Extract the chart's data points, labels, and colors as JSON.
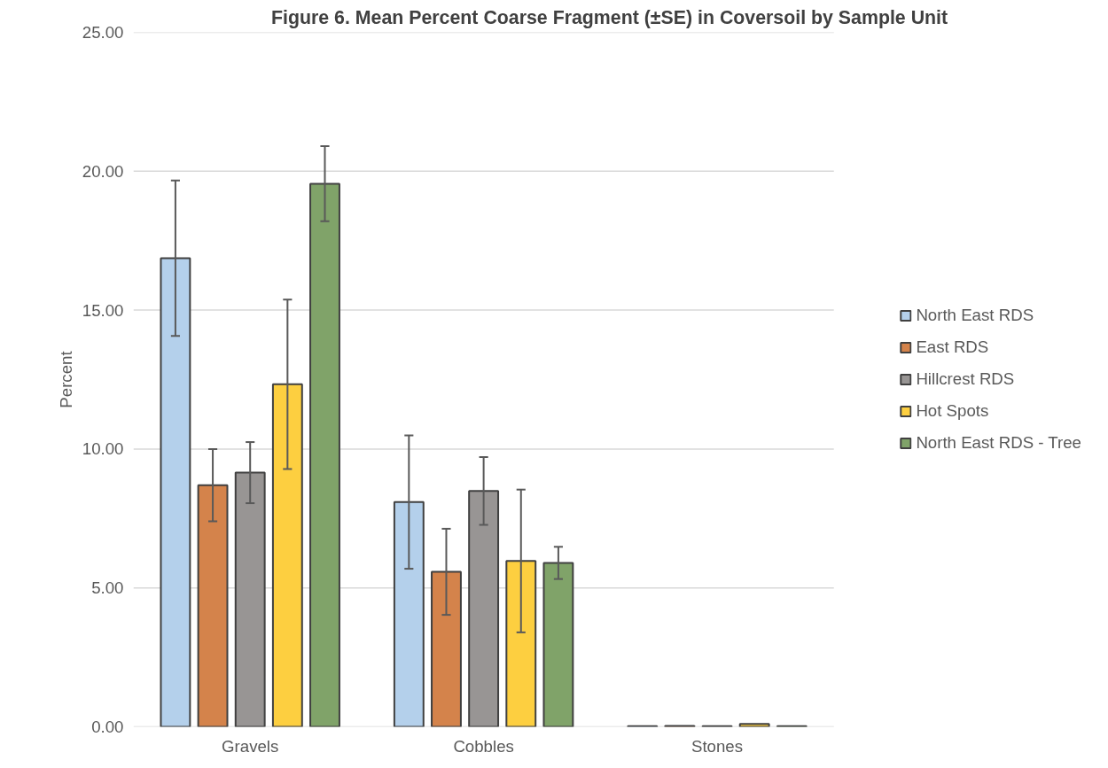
{
  "chart_data": {
    "type": "bar",
    "title": "Figure 6.  Mean Percent Coarse Fragment (±SE) in Coversoil by Sample Unit",
    "ylabel": "Percent",
    "categories": [
      "Gravels",
      "Cobbles",
      "Stones"
    ],
    "series": [
      {
        "name": "North East RDS",
        "color": "#b4d0eb",
        "values": [
          16.87,
          8.09,
          0.02
        ],
        "errors": [
          2.8,
          2.4,
          null
        ]
      },
      {
        "name": "East RDS",
        "color": "#d4834b",
        "values": [
          8.7,
          5.58,
          0.03
        ],
        "errors": [
          1.3,
          1.55,
          null
        ]
      },
      {
        "name": "Hillcrest RDS",
        "color": "#989594",
        "values": [
          9.15,
          8.49,
          0.02
        ],
        "errors": [
          1.1,
          1.22,
          null
        ]
      },
      {
        "name": "Hot Spots",
        "color": "#fdcf40",
        "values": [
          12.33,
          5.97,
          0.1
        ],
        "errors": [
          3.05,
          2.57,
          null
        ]
      },
      {
        "name": "North East RDS - Tree",
        "color": "#80a369",
        "values": [
          19.55,
          5.9,
          0.02
        ],
        "errors": [
          1.35,
          0.58,
          null
        ]
      }
    ],
    "ylim": [
      0,
      25
    ],
    "yticks": [
      {
        "value": 0,
        "label": "0.00"
      },
      {
        "value": 5,
        "label": "5.00"
      },
      {
        "value": 10,
        "label": "10.00"
      },
      {
        "value": 15,
        "label": "15.00"
      },
      {
        "value": 20,
        "label": "20.00"
      },
      {
        "value": 25,
        "label": "25.00"
      }
    ],
    "grid": "y",
    "legend": "right"
  }
}
